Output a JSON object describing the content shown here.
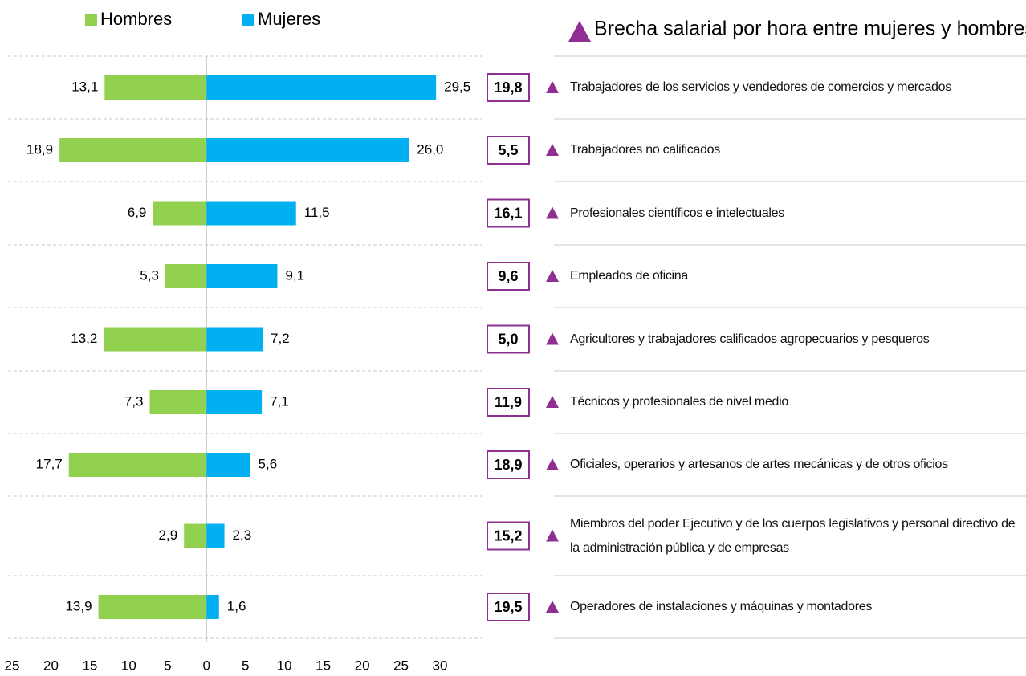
{
  "chart_data": {
    "type": "butterfly",
    "categories": [
      "Trabajadores de los servicios y vendedores de comercios y mercados",
      "Trabajadores no calificados",
      "Profesionales científicos e intelectuales",
      "Empleados de oficina",
      "Agricultores y trabajadores calificados agropecuarios y pesqueros",
      "Técnicos y profesionales de nivel medio",
      "Oficiales, operarios y artesanos de artes mecánicas y de otros oficios",
      "Miembros del poder Ejecutivo y de los cuerpos legislativos y personal directivo de la administración pública y de empresas",
      "Operadores de instalaciones y máquinas y montadores"
    ],
    "series": [
      {
        "name": "Hombres",
        "color": "#92d050",
        "side": "left",
        "values": [
          13.1,
          18.9,
          6.9,
          5.3,
          13.2,
          7.3,
          17.7,
          2.9,
          13.9
        ],
        "value_labels": [
          "13,1",
          "18,9",
          "6,9",
          "5,3",
          "13,2",
          "7,3",
          "17,7",
          "2,9",
          "13,9"
        ]
      },
      {
        "name": "Mujeres",
        "color": "#00b0f0",
        "side": "right",
        "values": [
          29.5,
          26.0,
          11.5,
          9.1,
          7.2,
          7.1,
          5.6,
          2.3,
          1.6
        ],
        "value_labels": [
          "29,5",
          "26,0",
          "11,5",
          "9,1",
          "7,2",
          "7,1",
          "5,6",
          "2,3",
          "1,6"
        ]
      }
    ],
    "gap": {
      "name": "Brecha salarial por hora entre mujeres y hombres",
      "color": "#8e2f91",
      "values": [
        19.8,
        5.5,
        16.1,
        9.6,
        5.0,
        11.9,
        18.9,
        15.2,
        19.5
      ],
      "value_labels": [
        "19,8",
        "5,5",
        "16,1",
        "9,6",
        "5,0",
        "11,9",
        "18,9",
        "15,2",
        "19,5"
      ]
    },
    "xlim": [
      -25,
      30
    ],
    "xticks": [
      {
        "value": -25,
        "label": "25"
      },
      {
        "value": -20,
        "label": "20"
      },
      {
        "value": -15,
        "label": "15"
      },
      {
        "value": -10,
        "label": "10"
      },
      {
        "value": -5,
        "label": "5"
      },
      0,
      5,
      10,
      15,
      20,
      25,
      30
    ]
  }
}
